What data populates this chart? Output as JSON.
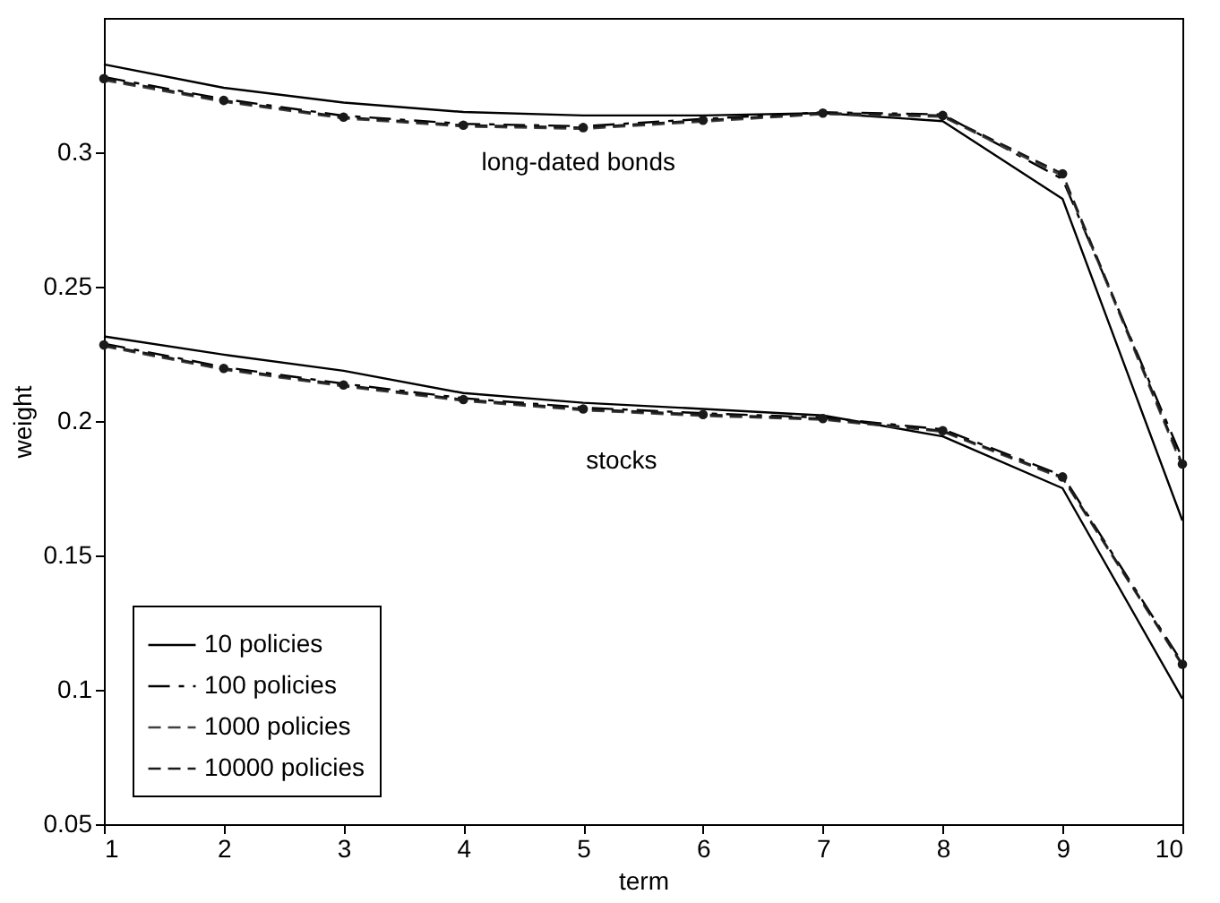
{
  "chart_data": {
    "type": "line",
    "xlabel": "term",
    "ylabel": "weight",
    "x": [
      1,
      2,
      3,
      4,
      5,
      6,
      7,
      8,
      9,
      10
    ],
    "xlim": [
      1,
      10
    ],
    "xticks": [
      1,
      2,
      3,
      4,
      5,
      6,
      7,
      8,
      9,
      10
    ],
    "ylim": [
      0.05,
      0.35
    ],
    "yticks": [
      0.05,
      0.1,
      0.15,
      0.2,
      0.25,
      0.3
    ],
    "grid": false,
    "legend": "bottom left",
    "series": [
      {
        "name": "10 policies",
        "color": "#000000",
        "line_style": "solid",
        "marker": "none",
        "values": [
          0.3327,
          0.324,
          0.3185,
          0.315,
          0.3137,
          0.3137,
          0.3146,
          0.3116,
          0.2827,
          0.163
        ]
      },
      {
        "name": "100 policies",
        "color": "#000000",
        "line_style": "dashdot",
        "marker": "none",
        "values": [
          0.328,
          0.3198,
          0.3136,
          0.3106,
          0.3097,
          0.3124,
          0.3149,
          0.3141,
          0.29,
          0.186
        ]
      },
      {
        "name": "1000 policies",
        "color": "#404040",
        "line_style": "dashed",
        "marker": "none",
        "values": [
          0.3268,
          0.3188,
          0.3126,
          0.3096,
          0.3087,
          0.3114,
          0.3142,
          0.3132,
          0.2912,
          0.183
        ]
      },
      {
        "name": "10000 policies",
        "color": "#1a1a1a",
        "line_style": "dashed",
        "marker": "circle",
        "values": [
          0.3274,
          0.3193,
          0.3131,
          0.3101,
          0.3092,
          0.3119,
          0.3146,
          0.3137,
          0.292,
          0.184
        ]
      },
      {
        "color": "#000000",
        "line_style": "solid",
        "marker": "none",
        "values": [
          0.2315,
          0.2247,
          0.2187,
          0.2104,
          0.2068,
          0.2045,
          0.2021,
          0.1943,
          0.175,
          0.0967
        ]
      },
      {
        "color": "#000000",
        "line_style": "dashdot",
        "marker": "none",
        "values": [
          0.2288,
          0.2201,
          0.2139,
          0.2085,
          0.205,
          0.2029,
          0.2013,
          0.1969,
          0.1797,
          0.11
        ]
      },
      {
        "color": "#404040",
        "line_style": "dashed",
        "marker": "none",
        "values": [
          0.2278,
          0.2191,
          0.2129,
          0.2075,
          0.204,
          0.2019,
          0.2005,
          0.196,
          0.1787,
          0.109
        ]
      },
      {
        "color": "#1a1a1a",
        "line_style": "dashed",
        "marker": "circle",
        "values": [
          0.2283,
          0.2196,
          0.2134,
          0.208,
          0.2045,
          0.2024,
          0.2009,
          0.1964,
          0.1792,
          0.1095
        ]
      }
    ],
    "annotations": [
      "long-dated bonds",
      "stocks"
    ]
  }
}
